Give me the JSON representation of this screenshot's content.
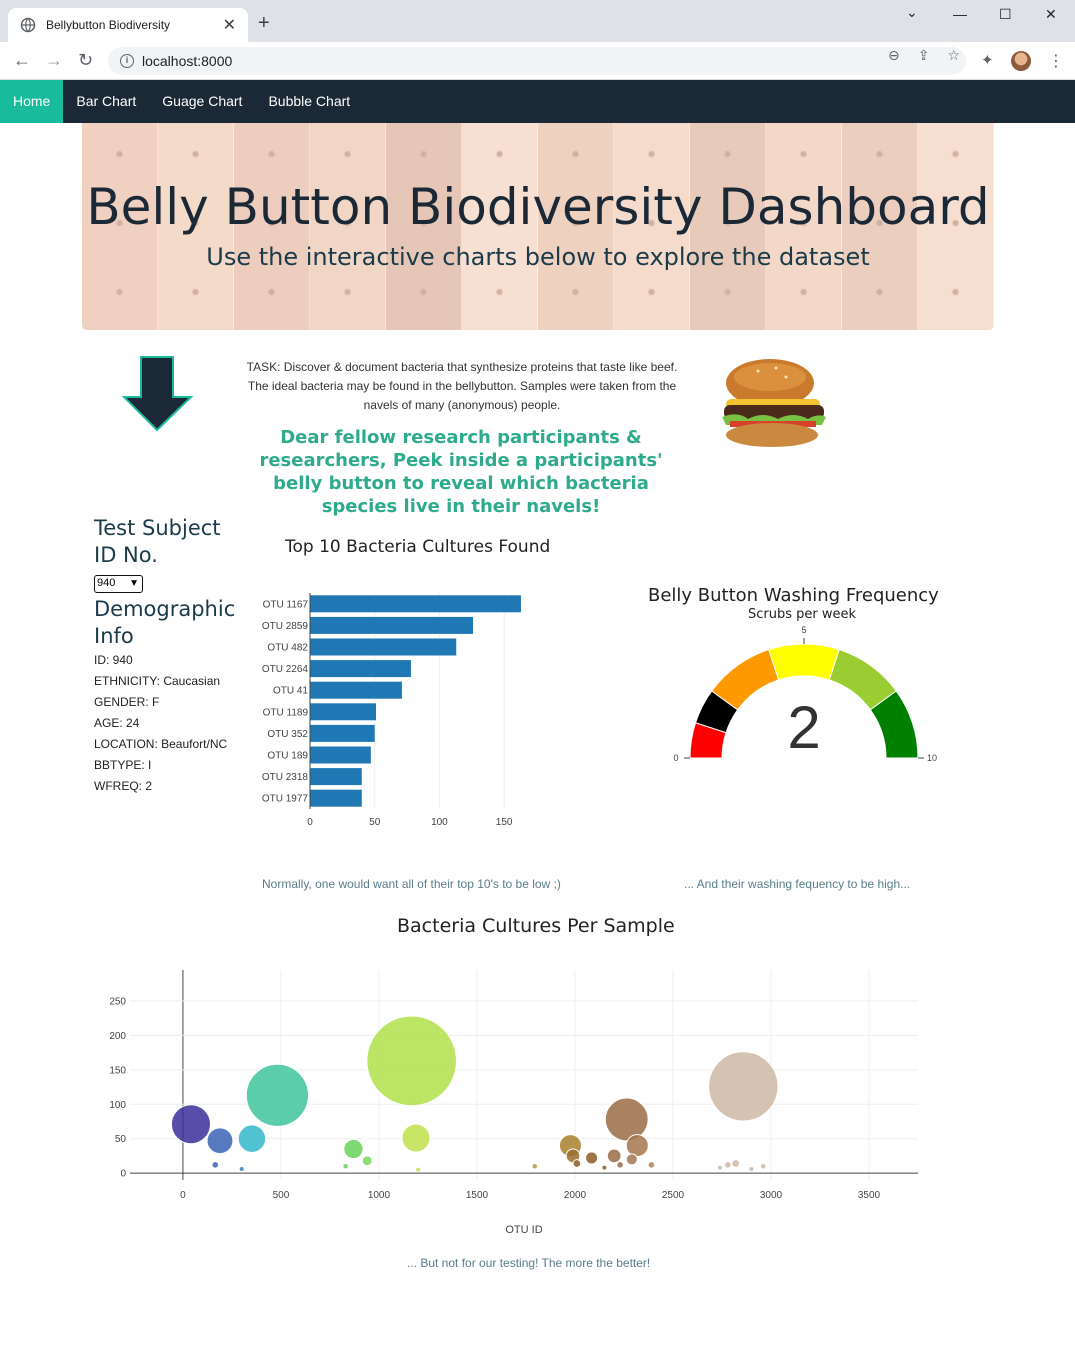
{
  "browser": {
    "tab_title": "Bellybutton Biodiversity",
    "url": "localhost:8000",
    "new_tab": "+",
    "tab_close": "✕",
    "back": "←",
    "forward": "→",
    "reload": "↻",
    "minimize": "—",
    "maximize": "☐",
    "close": "✕",
    "dropdown": "⌄",
    "zoom": "⊖",
    "share": "⇪",
    "bookmark": "☆",
    "extensions": "✦",
    "menu": "⋮"
  },
  "nav": {
    "items": [
      {
        "label": "Home",
        "active": true
      },
      {
        "label": "Bar Chart",
        "active": false
      },
      {
        "label": "Guage Chart",
        "active": false
      },
      {
        "label": "Bubble Chart",
        "active": false
      }
    ]
  },
  "hero": {
    "title": "Belly Button Biodiversity Dashboard",
    "subtitle": "Use the interactive charts below to explore the dataset"
  },
  "intro": {
    "task": "TASK: Discover & document bacteria that synthesize proteins that taste like beef. The ideal bacteria may be found in the bellybutton. Samples were taken from the navels of many (anonymous) people.",
    "call_out": "Dear fellow research participants & researchers, Peek inside a participants' belly button to reveal which bacteria species live in their navels!"
  },
  "sidebar": {
    "subject_title": "Test Subject ID No.",
    "selected_id": "940",
    "demo_title": "Demographic Info",
    "demographics": [
      "ID: 940",
      "ETHNICITY: Caucasian",
      "GENDER: F",
      "AGE: 24",
      "LOCATION: Beaufort/NC",
      "BBTYPE: I",
      "WFREQ: 2"
    ]
  },
  "captions": {
    "bar": "Normally, one would want all of their top 10's to be low ;)",
    "gauge": "... And their washing fequency to be high...",
    "bubble": "... But not for our testing! The more the better!"
  },
  "colors": {
    "nav_bg": "#1b2836",
    "nav_active": "#18bc9c",
    "bar": "#1f77b4",
    "callout": "#2eaa8c"
  },
  "chart_data": [
    {
      "type": "bar",
      "orientation": "horizontal",
      "title": "Top 10 Bacteria Cultures Found",
      "categories": [
        "OTU 1167",
        "OTU 2859",
        "OTU 482",
        "OTU 2264",
        "OTU 41",
        "OTU 1189",
        "OTU 352",
        "OTU 189",
        "OTU 2318",
        "OTU 1977"
      ],
      "values": [
        163,
        126,
        113,
        78,
        71,
        51,
        50,
        47,
        40,
        40
      ],
      "xlim": [
        0,
        170
      ],
      "xticks": [
        "0",
        "50",
        "100",
        "150"
      ],
      "grid": true
    },
    {
      "type": "gauge",
      "title": "Belly Button Washing Frequency",
      "subtitle": "Scrubs per week",
      "value": 2,
      "range": [
        0,
        10
      ],
      "tick_labels": [
        "0",
        "5",
        "10"
      ],
      "bands": [
        {
          "from": 0,
          "to": 1,
          "color": "#ff0000"
        },
        {
          "from": 1,
          "to": 2,
          "color": "#000000"
        },
        {
          "from": 2,
          "to": 4,
          "color": "#ff9900"
        },
        {
          "from": 4,
          "to": 6,
          "color": "#ffff00"
        },
        {
          "from": 6,
          "to": 8,
          "color": "#9acd32"
        },
        {
          "from": 8,
          "to": 10,
          "color": "#008000"
        }
      ]
    },
    {
      "type": "scatter",
      "title": "Bacteria Cultures Per Sample",
      "xlabel": "OTU ID",
      "xlim": [
        -270,
        3750
      ],
      "ylim": [
        -10,
        295
      ],
      "xticks": [
        "0",
        "500",
        "1000",
        "1500",
        "2000",
        "2500",
        "3000",
        "3500"
      ],
      "yticks": [
        "0",
        "50",
        "100",
        "150",
        "200",
        "250"
      ],
      "grid": true,
      "points": [
        {
          "x": 41,
          "y": 71,
          "r": 71,
          "c": "#3b2f9a"
        },
        {
          "x": 189,
          "y": 47,
          "r": 47,
          "c": "#3a63b5"
        },
        {
          "x": 352,
          "y": 50,
          "r": 50,
          "c": "#31b7c9"
        },
        {
          "x": 482,
          "y": 113,
          "r": 113,
          "c": "#3ec49b"
        },
        {
          "x": 165,
          "y": 12,
          "r": 12,
          "c": "#3a63b5"
        },
        {
          "x": 300,
          "y": 6,
          "r": 6,
          "c": "#3a80b5"
        },
        {
          "x": 870,
          "y": 35,
          "r": 35,
          "c": "#6ad45a"
        },
        {
          "x": 940,
          "y": 18,
          "r": 18,
          "c": "#7bd85a"
        },
        {
          "x": 830,
          "y": 10,
          "r": 10,
          "c": "#6ad45a"
        },
        {
          "x": 1167,
          "y": 163,
          "r": 163,
          "c": "#b2e04a"
        },
        {
          "x": 1189,
          "y": 51,
          "r": 51,
          "c": "#bfe04a"
        },
        {
          "x": 1200,
          "y": 5,
          "r": 5,
          "c": "#c8e04a"
        },
        {
          "x": 1795,
          "y": 10,
          "r": 10,
          "c": "#b89a40"
        },
        {
          "x": 1977,
          "y": 40,
          "r": 40,
          "c": "#a9802c"
        },
        {
          "x": 1990,
          "y": 25,
          "r": 25,
          "c": "#9a6e2a"
        },
        {
          "x": 2010,
          "y": 14,
          "r": 14,
          "c": "#8c5e28"
        },
        {
          "x": 2085,
          "y": 22,
          "r": 22,
          "c": "#8c5e28"
        },
        {
          "x": 2150,
          "y": 8,
          "r": 8,
          "c": "#8c5e28"
        },
        {
          "x": 2264,
          "y": 78,
          "r": 78,
          "c": "#9a6c46"
        },
        {
          "x": 2318,
          "y": 40,
          "r": 40,
          "c": "#a4764e"
        },
        {
          "x": 2200,
          "y": 25,
          "r": 25,
          "c": "#9a6c46"
        },
        {
          "x": 2290,
          "y": 20,
          "r": 20,
          "c": "#a4764e"
        },
        {
          "x": 2230,
          "y": 12,
          "r": 12,
          "c": "#9a6c46"
        },
        {
          "x": 2390,
          "y": 12,
          "r": 12,
          "c": "#b08060"
        },
        {
          "x": 2859,
          "y": 126,
          "r": 126,
          "c": "#cdb8a6"
        },
        {
          "x": 2780,
          "y": 12,
          "r": 12,
          "c": "#cdb8a6"
        },
        {
          "x": 2820,
          "y": 14,
          "r": 14,
          "c": "#cdb8a6"
        },
        {
          "x": 2740,
          "y": 8,
          "r": 8,
          "c": "#cdb8a6"
        },
        {
          "x": 2960,
          "y": 10,
          "r": 10,
          "c": "#cdb8a6"
        },
        {
          "x": 2900,
          "y": 6,
          "r": 6,
          "c": "#cdb8a6"
        }
      ]
    }
  ]
}
